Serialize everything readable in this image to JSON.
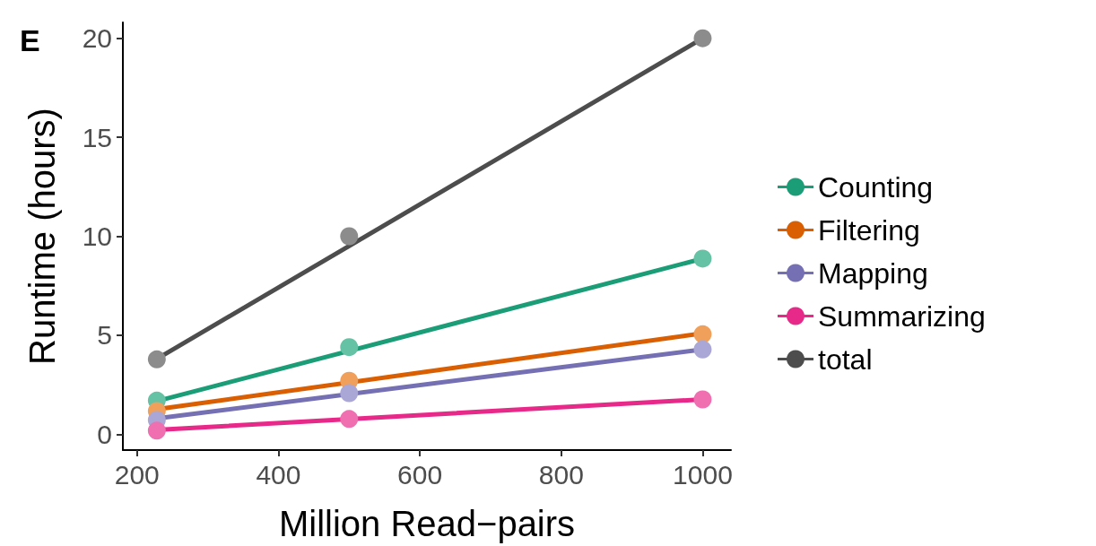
{
  "chart_data": {
    "type": "scatter",
    "xlabel": "Million Read−pairs",
    "ylabel": "Runtime (hours)",
    "annotations": [
      "E"
    ],
    "xlim": [
      180,
      1040
    ],
    "xticks": [
      200,
      400,
      600,
      800,
      1000
    ],
    "ylim": [
      -0.8,
      20.8
    ],
    "yticks": [
      0,
      5,
      10,
      15,
      20
    ],
    "grid": false,
    "legend": "right",
    "series": [
      {
        "type": "line",
        "name": "Counting",
        "marker": "none",
        "color": "#1b9e77",
        "x": [
          228,
          1000
        ],
        "values": [
          1.67,
          8.87
        ]
      },
      {
        "type": "line",
        "name": "Filtering",
        "marker": "none",
        "color": "#d95f02",
        "x": [
          228,
          1000
        ],
        "values": [
          1.26,
          5.1
        ]
      },
      {
        "type": "line",
        "name": "Mapping",
        "marker": "none",
        "color": "#7570b3",
        "x": [
          228,
          1000
        ],
        "values": [
          0.8,
          4.28
        ]
      },
      {
        "type": "line",
        "name": "Summarizing",
        "marker": "none",
        "color": "#e7298a",
        "x": [
          228,
          1000
        ],
        "values": [
          0.22,
          1.76
        ]
      },
      {
        "type": "line",
        "name": "total",
        "marker": "none",
        "color": "#4d4d4d",
        "x": [
          228,
          1000
        ],
        "values": [
          3.8,
          20.0
        ]
      },
      {
        "marker": "circle",
        "color": "#66c2a5",
        "x": [
          228,
          500,
          1000
        ],
        "values": [
          1.7,
          4.4,
          8.87
        ]
      },
      {
        "marker": "circle",
        "color": "#f0a05a",
        "x": [
          228,
          500,
          1000
        ],
        "values": [
          1.17,
          2.7,
          5.05
        ]
      },
      {
        "marker": "circle",
        "color": "#aaa7d6",
        "x": [
          228,
          500,
          1000
        ],
        "values": [
          0.72,
          2.07,
          4.28
        ]
      },
      {
        "marker": "circle",
        "color": "#ef6fb0",
        "x": [
          228,
          500,
          1000
        ],
        "values": [
          0.18,
          0.77,
          1.76
        ]
      },
      {
        "marker": "circle",
        "color": "#8c8c8c",
        "x": [
          228,
          500,
          1000
        ],
        "values": [
          3.78,
          10.0,
          20.0
        ]
      }
    ]
  }
}
